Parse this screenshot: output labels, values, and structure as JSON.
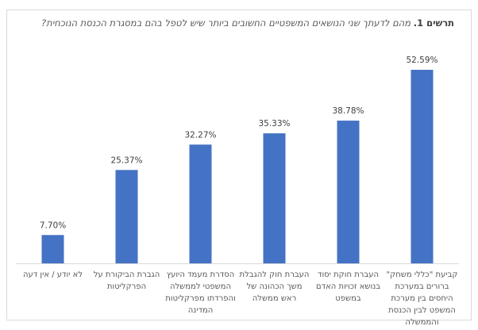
{
  "chart_data": {
    "type": "bar",
    "title_prefix": "תרשים 1.",
    "title_text": "מהם לדעתך שני הנושאים המשפטיים החשובים ביותר שיש לטפל בהם במסגרת הכנסת הנוכחית?",
    "categories": [
      "לא יודע / אין דעה",
      "הגברת הביקורת על הפרקליטות",
      "הסדרת מעמד היועץ המשפטי לממשלה והפרדתו מפרקליטות המדינה",
      "העברת חוק להגבלת משך הכהונה של ראש ממשלה",
      "העברת חוקת יסוד בנושא זכויות האדם במשפט",
      "קביעת \"כללי משחק\" ברורים במערכת היחסים בין מערכת המשפט לבין הכנסת והממשלה"
    ],
    "values": [
      7.7,
      25.37,
      32.27,
      35.33,
      38.78,
      52.59
    ],
    "data_labels": [
      "7.70%",
      "25.37%",
      "32.27%",
      "35.33%",
      "38.78%",
      "52.59%"
    ],
    "xlabel": "",
    "ylabel": "",
    "ylim": [
      0,
      52.59
    ],
    "grid": false,
    "legend": "none",
    "bar_color": "#4472C4",
    "axis_color": "#d9d9d9",
    "label_color": "#595959"
  }
}
